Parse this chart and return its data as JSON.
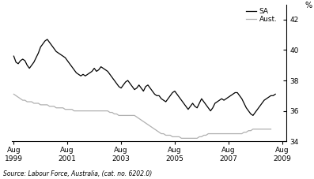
{
  "title": "",
  "ylabel": "%",
  "xlabel_source": "Source: Labour Force, Australia, (cat. no. 6202.0)",
  "ylim": [
    34,
    43
  ],
  "yticks": [
    34,
    36,
    38,
    40,
    42
  ],
  "xtick_labels": [
    "Aug\n1999",
    "Aug\n2001",
    "Aug\n2003",
    "Aug\n2005",
    "Aug\n2007",
    "Aug\n2009"
  ],
  "xtick_positions": [
    1999.583,
    2001.583,
    2003.583,
    2005.583,
    2007.583,
    2009.583
  ],
  "legend_labels": [
    "SA",
    "Aust."
  ],
  "sa_color": "#000000",
  "aust_color": "#b0b0b0",
  "background_color": "#ffffff",
  "sa_data": [
    39.6,
    39.2,
    39.1,
    39.3,
    39.4,
    39.3,
    39.0,
    38.8,
    39.0,
    39.2,
    39.5,
    39.8,
    40.2,
    40.4,
    40.6,
    40.7,
    40.5,
    40.3,
    40.1,
    39.9,
    39.8,
    39.7,
    39.6,
    39.5,
    39.3,
    39.1,
    38.9,
    38.7,
    38.5,
    38.4,
    38.3,
    38.4,
    38.3,
    38.4,
    38.5,
    38.6,
    38.8,
    38.6,
    38.7,
    38.9,
    38.8,
    38.7,
    38.6,
    38.4,
    38.2,
    38.0,
    37.8,
    37.6,
    37.5,
    37.7,
    37.9,
    38.0,
    37.8,
    37.6,
    37.4,
    37.5,
    37.7,
    37.5,
    37.3,
    37.6,
    37.7,
    37.5,
    37.3,
    37.1,
    37.0,
    37.0,
    36.8,
    36.7,
    36.6,
    36.8,
    37.0,
    37.2,
    37.3,
    37.1,
    36.9,
    36.7,
    36.5,
    36.3,
    36.1,
    36.3,
    36.5,
    36.3,
    36.2,
    36.5,
    36.8,
    36.6,
    36.4,
    36.2,
    36.0,
    36.2,
    36.5,
    36.6,
    36.7,
    36.8,
    36.7,
    36.8,
    36.9,
    37.0,
    37.1,
    37.2,
    37.2,
    37.0,
    36.8,
    36.5,
    36.2,
    36.0,
    35.8,
    35.7,
    35.9,
    36.1,
    36.3,
    36.5,
    36.7,
    36.8,
    36.9,
    37.0,
    37.0,
    37.1
  ],
  "aust_data": [
    37.1,
    37.0,
    36.9,
    36.8,
    36.7,
    36.7,
    36.6,
    36.6,
    36.6,
    36.5,
    36.5,
    36.5,
    36.4,
    36.4,
    36.4,
    36.4,
    36.3,
    36.3,
    36.3,
    36.2,
    36.2,
    36.2,
    36.2,
    36.1,
    36.1,
    36.1,
    36.1,
    36.0,
    36.0,
    36.0,
    36.0,
    36.0,
    36.0,
    36.0,
    36.0,
    36.0,
    36.0,
    36.0,
    36.0,
    36.0,
    36.0,
    36.0,
    36.0,
    35.9,
    35.9,
    35.8,
    35.8,
    35.7,
    35.7,
    35.7,
    35.7,
    35.7,
    35.7,
    35.7,
    35.7,
    35.6,
    35.5,
    35.4,
    35.3,
    35.2,
    35.1,
    35.0,
    34.9,
    34.8,
    34.7,
    34.6,
    34.5,
    34.5,
    34.4,
    34.4,
    34.4,
    34.3,
    34.3,
    34.3,
    34.3,
    34.2,
    34.2,
    34.2,
    34.2,
    34.2,
    34.2,
    34.2,
    34.2,
    34.3,
    34.3,
    34.4,
    34.4,
    34.5,
    34.5,
    34.5,
    34.5,
    34.5,
    34.5,
    34.5,
    34.5,
    34.5,
    34.5,
    34.5,
    34.5,
    34.5,
    34.5,
    34.5,
    34.5,
    34.6,
    34.6,
    34.7,
    34.7,
    34.8,
    34.8,
    34.8,
    34.8,
    34.8,
    34.8,
    34.8,
    34.8,
    34.8
  ]
}
